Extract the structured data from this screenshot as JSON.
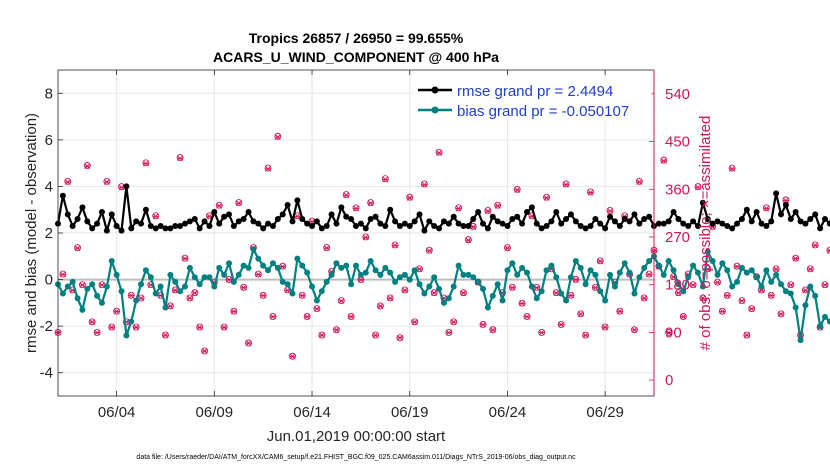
{
  "chart_data": {
    "type": "line",
    "title_line1": "Tropics 26857 / 26950 = 99.655%",
    "title_line2": "ACARS_U_WIND_COMPONENT @ 400 hPa",
    "xlabel": "Jun.01,2019 00:00:00 start",
    "ylabel_left": "rmse and bias (model - observation)",
    "ylabel_right": "# of obs: o=possible; ×=assimilated",
    "footer": "data file: /Users/raeder/DAI/ATM_forcXX/CAM6_setup/f.e21.FHIST_BGC.f09_025.CAM6assim.011/Diags_NTrS_2019-06/obs_diag_output.nc",
    "xlim": [
      0,
      30.5
    ],
    "ylim_left": [
      -5,
      9
    ],
    "ylim_right": [
      -30,
      585
    ],
    "x_ticks": [
      3,
      8,
      13,
      18,
      23,
      28
    ],
    "x_tick_labels": [
      "06/04",
      "06/09",
      "06/14",
      "06/19",
      "06/24",
      "06/29"
    ],
    "y_ticks_left": [
      -4,
      -2,
      0,
      2,
      4,
      6,
      8
    ],
    "y_tick_labels_left": [
      "-4",
      "-2",
      "0",
      "2",
      "4",
      "6",
      "8"
    ],
    "y_ticks_right": [
      0,
      90,
      180,
      270,
      360,
      450,
      540
    ],
    "y_tick_labels_right": [
      "0",
      "90",
      "180",
      "270",
      "360",
      "450",
      "540"
    ],
    "grid": true,
    "legend_position": "top-right",
    "colors": {
      "rmse": "#000000",
      "bias": "#008080",
      "obs": "#d4145a",
      "legend_text": "#1f3fcc",
      "zero_line": "#bdbdbd",
      "grid": "#e6e6e6",
      "right_axis": "#d4145a"
    },
    "series": [
      {
        "name": "rmse grand pr = 2.4494",
        "axis": "left",
        "x_start": 0,
        "x_step": 0.25,
        "values": [
          2.4,
          3.6,
          2.8,
          2.3,
          2.6,
          3.1,
          2.5,
          2.2,
          2.4,
          2.9,
          2.1,
          2.8,
          2.3,
          2.1,
          4.0,
          2.2,
          2.5,
          2.4,
          3.0,
          2.3,
          2.2,
          2.3,
          2.2,
          2.2,
          2.3,
          2.3,
          2.4,
          2.5,
          2.6,
          2.2,
          2.5,
          2.3,
          2.9,
          2.4,
          2.7,
          2.8,
          2.3,
          2.5,
          2.6,
          2.9,
          2.5,
          2.4,
          2.2,
          2.4,
          2.3,
          2.6,
          2.8,
          3.2,
          2.5,
          3.4,
          2.6,
          2.4,
          2.3,
          2.5,
          2.2,
          2.3,
          2.8,
          2.4,
          3.1,
          2.7,
          2.6,
          2.3,
          2.4,
          2.2,
          2.6,
          2.7,
          2.4,
          2.3,
          3.0,
          2.5,
          2.3,
          2.4,
          2.3,
          2.5,
          2.8,
          2.1,
          2.5,
          2.3,
          2.2,
          2.5,
          2.4,
          2.7,
          2.4,
          2.3,
          2.3,
          2.6,
          2.9,
          2.4,
          2.2,
          2.7,
          2.5,
          2.4,
          2.3,
          2.6,
          2.7,
          2.4,
          2.9,
          3.1,
          2.4,
          2.2,
          2.3,
          2.5,
          2.9,
          2.4,
          2.6,
          2.8,
          2.5,
          2.3,
          2.2,
          2.3,
          2.6,
          2.4,
          2.2,
          2.7,
          2.5,
          2.3,
          2.6,
          2.5,
          2.8,
          2.4,
          2.6,
          2.7,
          2.3,
          2.4,
          2.4,
          2.5,
          2.9,
          2.6,
          2.4,
          2.3,
          2.5,
          2.3,
          3.3,
          2.6,
          2.4,
          2.5,
          2.4,
          2.3,
          2.2,
          2.4,
          2.6,
          3.0,
          2.5,
          2.9,
          2.4,
          2.3,
          2.5,
          3.7,
          2.8,
          3.2,
          2.6,
          2.9,
          2.5,
          2.4,
          2.6,
          2.8,
          2.2,
          2.6,
          2.4,
          3.2,
          2.5,
          2.4,
          2.3,
          2.6,
          2.1,
          2.4,
          2.2,
          2.5,
          2.7,
          2.3,
          2.6,
          2.8,
          2.5,
          2.4,
          2.3,
          3.0,
          2.6,
          2.5,
          2.7,
          3.3,
          2.9,
          3.6,
          2.6,
          2.4,
          2.5,
          2.7,
          2.3,
          2.6,
          2.4,
          2.5,
          2.7,
          2.8,
          2.6,
          2.5,
          2.6,
          2.5,
          2.7,
          2.4,
          2.5,
          2.7,
          2.4,
          2.6,
          2.3,
          2.4,
          2.3,
          2.3
        ]
      },
      {
        "name": "bias grand pr = -0.050107",
        "axis": "left",
        "x_start": 0,
        "x_step": 0.25,
        "values": [
          -0.2,
          -0.6,
          -0.3,
          -0.1,
          -0.8,
          -1.3,
          -0.4,
          -0.2,
          -0.7,
          -1.0,
          -0.3,
          0.8,
          0.2,
          -0.5,
          -2.4,
          -1.8,
          -0.9,
          -0.2,
          0.4,
          0.1,
          -0.6,
          -0.3,
          -1.2,
          0.2,
          -0.1,
          -0.5,
          -0.3,
          0.5,
          0.1,
          -0.2,
          0.1,
          0.1,
          -0.3,
          0.5,
          0.2,
          0.7,
          -0.1,
          0.2,
          0.6,
          0.5,
          1.3,
          0.9,
          0.6,
          0.4,
          0.7,
          0.5,
          -0.1,
          -0.2,
          -0.6,
          0.9,
          0.6,
          0.3,
          -0.3,
          -0.9,
          -0.5,
          -0.1,
          0.2,
          0.7,
          0.5,
          0.6,
          -0.2,
          0.6,
          0.2,
          0.3,
          0.8,
          0.4,
          0.2,
          0.5,
          0.3,
          -0.1,
          0.1,
          0.2,
          0.0,
          0.4,
          -0.2,
          -0.6,
          -0.3,
          0.1,
          -0.4,
          -1.0,
          -0.8,
          -0.3,
          0.6,
          0.2,
          0.2,
          0.1,
          -0.1,
          -0.4,
          -1.2,
          -0.7,
          -0.2,
          -0.9,
          0.4,
          0.7,
          0.2,
          0.5,
          0.3,
          -0.3,
          -0.8,
          -0.5,
          0.4,
          0.6,
          0.1,
          -0.6,
          -0.9,
          0.1,
          0.8,
          0.5,
          -0.2,
          0.4,
          0.2,
          -0.5,
          -0.9,
          0.2,
          -0.3,
          0.3,
          0.7,
          0.3,
          -0.6,
          0.1,
          0.5,
          0.8,
          1.0,
          0.6,
          0.2,
          0.8,
          0.4,
          -0.2,
          -0.5,
          0.1,
          0.6,
          0.3,
          -0.3,
          1.2,
          0.8,
          0.2,
          0.7,
          0.4,
          -0.3,
          -0.1,
          0.5,
          0.3,
          0.4,
          0.1,
          -0.3,
          0.4,
          -0.1,
          0.2,
          -0.2,
          -0.5,
          -0.6,
          -1.2,
          -2.6,
          -1.1,
          -0.3,
          -0.7,
          -2.0,
          -1.6,
          -1.8,
          -1.3,
          -0.5,
          0.6,
          -0.2,
          -0.4,
          0.1,
          0.4,
          -0.2,
          -0.3,
          -0.1,
          -0.2,
          0.3,
          -0.2,
          -0.6,
          0.2,
          0.6,
          0.8,
          0.4,
          0.5,
          0.1,
          -0.3,
          0.1,
          -0.1,
          0.3,
          -0.1,
          0.2,
          0.3,
          -0.2,
          -0.1,
          -0.2,
          -0.1,
          0.2,
          -0.4,
          0.0,
          -0.3,
          0.2,
          0.5,
          0.9,
          1.4,
          0.8,
          1.2,
          0.6,
          1.1,
          0.8,
          0.3,
          0.6,
          -0.2,
          -0.5
        ]
      },
      {
        "name": "obs possible/assimilated",
        "axis": "right",
        "x_start": 0,
        "x_step": 0.25,
        "values": [
          90,
          200,
          375,
          170,
          250,
          180,
          405,
          110,
          90,
          180,
          375,
          100,
          130,
          365,
          110,
          160,
          100,
          155,
          410,
          180,
          310,
          160,
          85,
          140,
          170,
          420,
          230,
          155,
          165,
          100,
          55,
          310,
          185,
          330,
          100,
          190,
          130,
          335,
          175,
          70,
          250,
          200,
          160,
          400,
          120,
          460,
          215,
          170,
          45,
          310,
          160,
          120,
          300,
          135,
          85,
          250,
          205,
          95,
          150,
          350,
          120,
          325,
          190,
          270,
          335,
          85,
          140,
          380,
          155,
          255,
          80,
          170,
          345,
          110,
          210,
          370,
          245,
          165,
          430,
          155,
          90,
          110,
          325,
          165,
          265,
          290,
          185,
          105,
          320,
          95,
          330,
          165,
          250,
          175,
          360,
          145,
          120,
          310,
          175,
          90,
          345,
          210,
          165,
          105,
          370,
          160,
          190,
          125,
          85,
          355,
          175,
          225,
          100,
          320,
          185,
          130,
          310,
          200,
          95,
          375,
          155,
          200,
          245,
          215,
          415,
          90,
          195,
          165,
          120,
          200,
          180,
          365,
          155,
          210,
          290,
          185,
          130,
          160,
          400,
          215,
          150,
          85,
          135,
          195,
          170,
          325,
          160,
          210,
          125,
          340,
          180,
          230,
          85,
          170,
          210,
          255,
          100,
          180,
          245,
          165,
          120,
          195,
          140,
          370,
          200,
          85,
          240,
          140,
          120,
          155,
          190,
          330,
          160,
          205,
          270,
          130,
          195,
          155,
          320,
          90,
          225,
          185,
          385,
          255,
          150,
          195,
          325,
          175,
          105,
          300,
          180,
          450,
          150,
          200,
          270,
          230,
          95,
          360,
          100,
          0,
          180,
          0,
          0,
          0
        ]
      }
    ],
    "assim_ratio": 0.99655
  }
}
